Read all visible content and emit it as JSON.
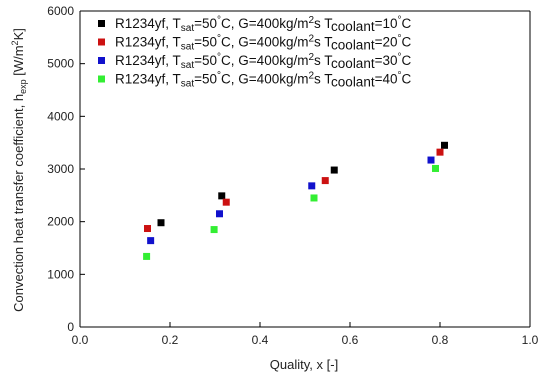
{
  "chart_data": {
    "type": "scatter",
    "xlabel": "Quality, x [-]",
    "ylabel": {
      "main": "Convection heat transfer coefficient, h",
      "sub": "exp",
      "unit_open": " [W/m",
      "unit_sup": "2",
      "unit_close": "K]"
    },
    "xlim": [
      0.0,
      1.0
    ],
    "ylim": [
      0,
      6000
    ],
    "x_ticks": [
      "0.0",
      "0.2",
      "0.4",
      "0.6",
      "0.8",
      "1.0"
    ],
    "y_ticks": [
      "0",
      "1000",
      "2000",
      "3000",
      "4000",
      "5000",
      "6000"
    ],
    "grid": false,
    "legend_position": "top-left",
    "series": [
      {
        "legend": {
          "a": "R1234yf, T",
          "sat": "sat",
          "b": "=50",
          "deg": "°",
          "c": "C, G=400kg/m",
          "sq": "2",
          "d": "s T",
          "cool": "coolant",
          "e": "=10",
          "deg2": "°",
          "f": "C"
        },
        "color": "#000000",
        "x": [
          0.18,
          0.315,
          0.565,
          0.81
        ],
        "y": [
          1980,
          2490,
          2980,
          3450
        ]
      },
      {
        "legend": {
          "a": "R1234yf, T",
          "sat": "sat",
          "b": "=50",
          "deg": "°",
          "c": "C, G=400kg/m",
          "sq": "2",
          "d": "s T",
          "cool": "coolant",
          "e": "=20",
          "deg2": "°",
          "f": "C"
        },
        "color": "#cc1111",
        "x": [
          0.15,
          0.325,
          0.545,
          0.8
        ],
        "y": [
          1870,
          2370,
          2780,
          3320
        ]
      },
      {
        "legend": {
          "a": "R1234yf, T",
          "sat": "sat",
          "b": "=50",
          "deg": "°",
          "c": "C, G=400kg/m",
          "sq": "2",
          "d": "s T",
          "cool": "coolant",
          "e": "=30",
          "deg2": "°",
          "f": "C"
        },
        "color": "#1111cc",
        "x": [
          0.157,
          0.31,
          0.515,
          0.78
        ],
        "y": [
          1640,
          2150,
          2680,
          3170
        ]
      },
      {
        "legend": {
          "a": "R1234yf, T",
          "sat": "sat",
          "b": "=50",
          "deg": "°",
          "c": "C, G=400kg/m",
          "sq": "2",
          "d": "s T",
          "cool": "coolant",
          "e": "=40",
          "deg2": "°",
          "f": "C"
        },
        "color": "#33ee33",
        "x": [
          0.148,
          0.298,
          0.52,
          0.79
        ],
        "y": [
          1340,
          1850,
          2450,
          3010
        ]
      }
    ]
  }
}
